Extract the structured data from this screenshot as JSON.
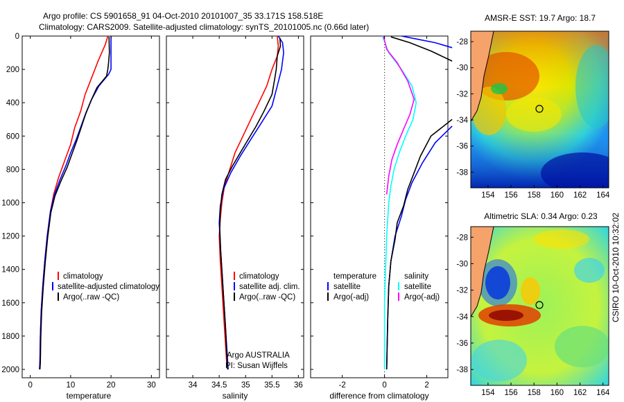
{
  "header": {
    "title_line1": "Argo profile: CS 5901658_91 04-Oct-2010 20101007_35 33.171S 158.518E",
    "title_line2": "Climatology: CARS2009. Satellite-adjusted climatology: synTS_20101005.nc (0.66d later)"
  },
  "side_label": "CSIRO 10-Oct-2010 10:32:02",
  "colors": {
    "red": "#ff0000",
    "blue": "#0000ff",
    "black": "#000000",
    "cyan": "#00ffff",
    "magenta": "#ff00ff"
  },
  "chart_data": [
    {
      "id": "temperature",
      "type": "line",
      "xlabel": "temperature",
      "ylabel": "",
      "xlim": [
        -2,
        32
      ],
      "ylim": [
        2050,
        0
      ],
      "xticks": [
        0,
        10,
        20,
        30
      ],
      "yticks": [
        0,
        200,
        400,
        600,
        800,
        1000,
        1200,
        1400,
        1600,
        1800,
        2000
      ],
      "legend": [
        "climatology",
        "satellite-adjusted climatology",
        "Argo(..raw -QC)"
      ],
      "series": [
        {
          "name": "climatology",
          "color": "red",
          "x": [
            19.2,
            18.6,
            16.8,
            15.2,
            13.6,
            12.5,
            11.0,
            10.0,
            8.5,
            7.0,
            5.8,
            5.0,
            4.2,
            3.6,
            3.1,
            2.7,
            2.5,
            2.4,
            2.3
          ],
          "y": [
            0,
            50,
            150,
            250,
            350,
            450,
            550,
            650,
            750,
            850,
            950,
            1050,
            1200,
            1350,
            1500,
            1650,
            1800,
            1950,
            2000
          ]
        },
        {
          "name": "satellite-adjusted climatology",
          "color": "blue",
          "x": [
            20.0,
            20.0,
            20.0,
            19.4,
            17.0,
            15.2,
            13.8,
            12.6,
            11.4,
            10.0,
            8.8,
            7.4,
            6.0,
            5.0,
            4.2,
            3.6,
            3.1,
            2.7,
            2.5,
            2.4,
            2.3
          ],
          "y": [
            0,
            100,
            200,
            230,
            300,
            380,
            460,
            540,
            620,
            700,
            780,
            860,
            950,
            1050,
            1200,
            1350,
            1500,
            1650,
            1800,
            1950,
            2000
          ]
        },
        {
          "name": "Argo(..raw -QC)",
          "color": "black",
          "x": [
            19.5,
            19.6,
            19.4,
            19.2,
            18.9,
            16.5,
            15.0,
            13.7,
            12.6,
            11.5,
            10.3,
            9.1,
            7.6,
            6.1,
            5.1,
            4.3,
            3.7,
            3.2,
            2.8,
            2.6,
            2.5,
            2.4
          ],
          "y": [
            5,
            100,
            160,
            200,
            240,
            310,
            390,
            470,
            550,
            630,
            710,
            790,
            870,
            960,
            1060,
            1210,
            1360,
            1510,
            1660,
            1810,
            1960,
            2000
          ]
        }
      ]
    },
    {
      "id": "salinity",
      "type": "line",
      "xlabel": "salinity",
      "ylabel": "",
      "xlim": [
        33.5,
        36.1
      ],
      "ylim": [
        2050,
        0
      ],
      "xticks": [
        34,
        34.5,
        35,
        35.5,
        36
      ],
      "yticks": [
        0,
        200,
        400,
        600,
        800,
        1000,
        1200,
        1400,
        1600,
        1800,
        2000
      ],
      "legend": [
        "climatology",
        "satellite adj. clim.",
        "Argo(..raw -QC)"
      ],
      "annotations": [
        "Argo AUSTRALIA",
        "PI: Susan Wijffels"
      ],
      "series": [
        {
          "name": "climatology",
          "color": "red",
          "x": [
            35.6,
            35.62,
            35.6,
            35.5,
            35.4,
            35.25,
            35.1,
            34.95,
            34.8,
            34.7,
            34.6,
            34.55,
            34.52,
            34.5,
            34.52,
            34.55,
            34.58,
            34.61,
            34.64,
            34.67
          ],
          "y": [
            0,
            60,
            120,
            200,
            300,
            400,
            500,
            600,
            700,
            800,
            900,
            1000,
            1100,
            1200,
            1350,
            1500,
            1650,
            1800,
            1950,
            2000
          ]
        },
        {
          "name": "satellite adj. clim.",
          "color": "blue",
          "x": [
            35.62,
            35.7,
            35.72,
            35.68,
            35.6,
            35.5,
            35.3,
            35.1,
            34.9,
            34.72,
            34.58,
            34.52,
            34.5,
            34.52,
            34.55,
            34.58,
            34.61,
            34.64,
            34.67
          ],
          "y": [
            0,
            40,
            100,
            200,
            300,
            420,
            520,
            620,
            720,
            820,
            920,
            1020,
            1120,
            1250,
            1400,
            1550,
            1700,
            1850,
            2000
          ]
        },
        {
          "name": "Argo(..raw -QC)",
          "color": "black",
          "x": [
            35.65,
            35.66,
            35.6,
            35.58,
            35.55,
            35.5,
            35.35,
            35.2,
            35.05,
            34.9,
            34.75,
            34.62,
            34.55,
            34.52,
            34.51,
            34.53,
            34.56,
            34.59,
            34.62,
            34.64,
            34.66
          ],
          "y": [
            10,
            60,
            120,
            200,
            260,
            350,
            450,
            540,
            620,
            700,
            780,
            860,
            950,
            1050,
            1150,
            1300,
            1450,
            1600,
            1750,
            1900,
            2000
          ]
        }
      ]
    },
    {
      "id": "difference",
      "type": "line",
      "xlabel": "difference from climatology",
      "ylabel": "",
      "xlim": [
        -3.5,
        3
      ],
      "ylim": [
        2050,
        0
      ],
      "xticks": [
        -2,
        0,
        2
      ],
      "yticks": [
        0,
        200,
        400,
        600,
        800,
        1000,
        1200,
        1400,
        1600,
        1800,
        2000
      ],
      "legend_left_title": "temperature",
      "legend_right_title": "salinity",
      "legend_left": [
        "satellite",
        "Argo(-adj)"
      ],
      "legend_right": [
        "satellite",
        "Argo(-adj)"
      ],
      "series": [
        {
          "name": "temperature satellite",
          "color": "blue",
          "x": [
            0.8,
            1.6,
            2.4,
            3.2,
            null,
            3.2,
            2.4,
            1.8,
            1.3,
            1.0,
            0.8,
            0.5,
            0.3,
            0.2,
            0.15,
            0.1
          ],
          "y": [
            0,
            20,
            40,
            70,
            null,
            540,
            640,
            760,
            880,
            980,
            1080,
            1200,
            1350,
            1500,
            1700,
            2000
          ]
        },
        {
          "name": "temperature Argo(-adj)",
          "color": "black",
          "x": [
            0.3,
            1.2,
            2.2,
            3.2,
            null,
            3.2,
            2.2,
            1.7,
            1.4,
            1.1,
            0.9,
            0.6,
            0.5,
            0.3,
            0.2,
            0.15,
            0.1
          ],
          "y": [
            5,
            40,
            90,
            150,
            null,
            500,
            600,
            720,
            820,
            920,
            1020,
            1120,
            1220,
            1350,
            1500,
            1700,
            2000
          ]
        },
        {
          "name": "salinity satellite",
          "color": "cyan",
          "x": [
            -0.1,
            0.2,
            0.8,
            1.3,
            1.5,
            1.35,
            1.0,
            0.7,
            0.45,
            0.3,
            0.2,
            0.1,
            0.05,
            0.0,
            0.0,
            0.0
          ],
          "y": [
            0,
            100,
            200,
            300,
            400,
            500,
            600,
            700,
            800,
            900,
            1000,
            1200,
            1400,
            1600,
            1800,
            2000
          ]
        },
        {
          "name": "salinity Argo(-adj)",
          "color": "magenta",
          "x": [
            -0.05,
            0.1,
            0.6,
            1.1,
            1.4,
            1.2,
            0.9,
            0.6,
            0.35,
            0.2,
            0.1
          ],
          "y": [
            0,
            80,
            160,
            270,
            380,
            470,
            560,
            650,
            740,
            840,
            950
          ]
        }
      ]
    },
    {
      "id": "sst-map",
      "type": "heatmap",
      "title": "AMSR-E SST: 19.7 Argo: 18.7",
      "xlim": [
        152.5,
        164.5
      ],
      "ylim": [
        -39.2,
        -27.2
      ],
      "xticks": [
        154,
        156,
        158,
        160,
        162,
        164
      ],
      "yticks": [
        -28,
        -30,
        -32,
        -34,
        -36,
        -38
      ],
      "marker": {
        "lon": 158.518,
        "lat": -33.171
      }
    },
    {
      "id": "sla-map",
      "type": "heatmap",
      "title": "Altimetric SLA: 0.34 Argo: 0.23",
      "xlim": [
        152.5,
        164.5
      ],
      "ylim": [
        -39.2,
        -27.2
      ],
      "xticks": [
        154,
        156,
        158,
        160,
        162,
        164
      ],
      "yticks": [
        -28,
        -30,
        -32,
        -34,
        -36,
        -38
      ],
      "marker": {
        "lon": 158.518,
        "lat": -33.171
      }
    }
  ]
}
